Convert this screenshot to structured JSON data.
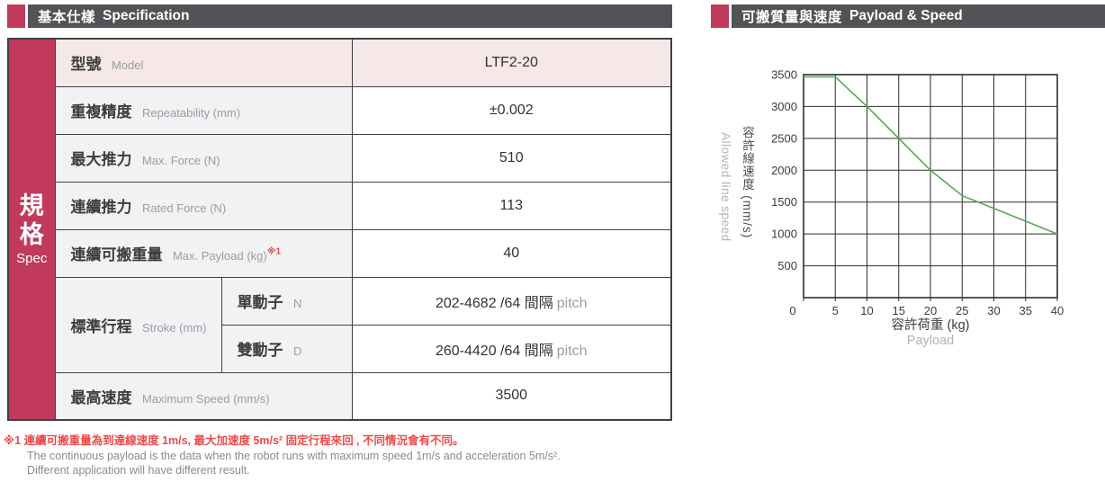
{
  "left": {
    "header": {
      "title_zh": "基本仕樣",
      "title_en": "Specification"
    },
    "spec_column": {
      "zh": "規格",
      "en": "Spec"
    },
    "table": {
      "rows": [
        {
          "label_zh": "型號",
          "label_en": "Model",
          "value": "LTF2-20"
        },
        {
          "label_zh": "重複精度",
          "label_en": "Repeatability (mm)",
          "value": "±0.002"
        },
        {
          "label_zh": "最大推力",
          "label_en": "Max. Force (N)",
          "value": "510"
        },
        {
          "label_zh": "連續推力",
          "label_en": "Rated Force (N)",
          "value": "113"
        },
        {
          "label_zh": "連續可搬重量",
          "label_en": "Max. Payload (kg)",
          "footnote_ref": "※1",
          "value": "40"
        },
        {
          "label_zh": "標準行程",
          "label_en": "Stroke (mm)",
          "sub_rows": [
            {
              "sub_zh": "單動子",
              "sub_en": "N",
              "value": "202-4682 /64 間隔",
              "value_suffix": "pitch"
            },
            {
              "sub_zh": "雙動子",
              "sub_en": "D",
              "value": "260-4420 /64 間隔",
              "value_suffix": "pitch"
            }
          ]
        },
        {
          "label_zh": "最高速度",
          "label_en": "Maximum Speed (mm/s)",
          "value": "3500"
        }
      ]
    },
    "footnote": {
      "line1": "※1 連續可搬重量為到達線速度 1m/s, 最大加速度 5m/s² 固定行程來回 , 不同情況會有不同。",
      "line2": "The continuous payload is the data when the robot runs with maximum speed 1m/s and acceleration 5m/s².",
      "line3": "Different application will have different result."
    }
  },
  "right": {
    "header": {
      "title_zh": "可搬質量與速度",
      "title_en": "Payload & Speed"
    }
  },
  "chart_data": {
    "type": "line",
    "title": "可搬質量與速度 Payload & Speed",
    "x": [
      0,
      5,
      10,
      15,
      20,
      25,
      30,
      35,
      40
    ],
    "series": [
      {
        "name": "allowed_line_speed",
        "values": [
          3500,
          3500,
          3000,
          2500,
          2000,
          1600,
          1400,
          1200,
          1000
        ]
      }
    ],
    "xlabel_zh": "容許荷重 (kg)",
    "xlabel_en": "Payload",
    "ylabel_zh": "容許線速度 (mm/s)",
    "ylabel_en": "Allowed line speed",
    "xlim": [
      0,
      40
    ],
    "ylim": [
      0,
      3500
    ],
    "x_ticks": [
      0,
      5,
      10,
      15,
      20,
      25,
      30,
      35,
      40
    ],
    "y_ticks": [
      3500,
      3000,
      2500,
      2000,
      1500,
      1000,
      500
    ],
    "grid": true,
    "legend": false,
    "line_color": "#57a757"
  },
  "colors": {
    "accent_red": "#c23a5b",
    "header_bar": "#525356",
    "row_pink": "#f7e8e8",
    "row_gray": "#f1f2f4",
    "table_border": "#404040",
    "footnote_red": "#ee4a4a",
    "chart_line_green": "#57a757"
  }
}
